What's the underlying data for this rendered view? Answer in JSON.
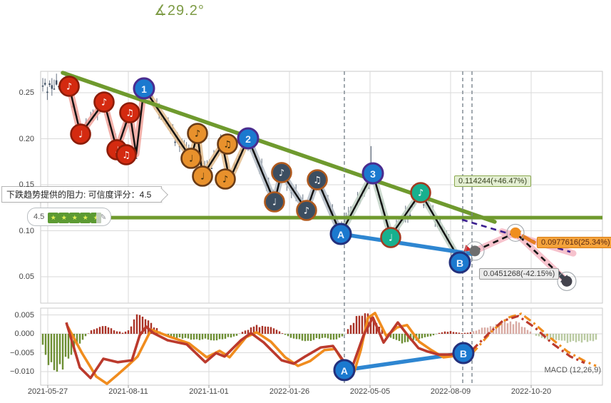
{
  "title": {
    "angle_label": "∡29.2°"
  },
  "tooltip": {
    "text": "下跌趋势提供的阻力: 可信度评分：4.5"
  },
  "rating": {
    "value": "4.5",
    "stars_full": 4,
    "stars_half": 1,
    "edit_icon": "✎"
  },
  "annotations": {
    "target": {
      "text": "0.114244(+46.47%)"
    },
    "mid": {
      "text": "0.0977616(25.34%)"
    },
    "stop": {
      "text": "0.0451268(-42.15%)"
    }
  },
  "macd_label": "MACD (12,26,9)",
  "colors": {
    "trend_green": "#6f9a2e",
    "title_green": "#7d9b45",
    "candle": "#3f4f63",
    "macd_line": "#bb3a2d",
    "signal_line": "#f08c1e",
    "hist_pos": "#a93226",
    "hist_neg": "#6d8f34",
    "hist_pos_fc": "#d0958d",
    "hist_neg_fc": "#a9bd8a",
    "blue_line": "#2e86d1",
    "vline": "#7a848e",
    "grid": "#dadada",
    "pink_glow": "#f6bcc8",
    "purple_dash": "#3b1f8f",
    "marker_red": "#d42a10",
    "marker_red_border": "#8c1c08",
    "marker_orange": "#e8912c",
    "marker_orange_border": "#6b3c16",
    "marker_navy": "#3c4e61",
    "marker_navy_border": "#b05a1e",
    "marker_teal": "#17b08e",
    "marker_teal_border": "#a23b22",
    "marker_blue": "#1b79cf",
    "marker_num_border": "#4a2c8f",
    "marker_ab_border": "#23307c",
    "dot_gray": "#6e6e6e",
    "dot_orange": "#ef8e1f",
    "dot_dark": "#43434d"
  },
  "chart_data": [
    {
      "type": "candlestick",
      "panel": "price",
      "title": "∡29.2°",
      "trend_angle_deg": 29.2,
      "ylim": [
        0.022,
        0.273
      ],
      "yticks": [
        0.25,
        0.2,
        0.15,
        0.1,
        0.05
      ],
      "ytick_labels": [
        "0.25",
        "0.20",
        "0.15",
        "0.10",
        "0.05"
      ],
      "xtick_t": [
        0.0127,
        0.1561,
        0.2995,
        0.4429,
        0.5863,
        0.7297,
        0.8731
      ],
      "xtick_labels": [
        "2021-05-27",
        "2021-08-11",
        "2021-11-01",
        "2022-01-26",
        "2022-05-05",
        "2022-08-09",
        "2022-10-20"
      ],
      "grid": true,
      "resistance_level": 0.114244,
      "resistance_confidence": 4.5,
      "current_price": 0.078,
      "trend_line": {
        "from": [
          0.0393,
          0.2717
        ],
        "to": [
          0.8083,
          0.1097
        ]
      },
      "zigzag": [
        [
          0.0508,
          0.257
        ],
        [
          0.0711,
          0.205
        ],
        [
          0.1129,
          0.2399
        ],
        [
          0.1358,
          0.188
        ],
        [
          0.1586,
          0.2283
        ],
        [
          0.17,
          0.1833
        ],
        [
          0.184,
          0.2547
        ],
        [
          0.2678,
          0.1787
        ],
        [
          0.2792,
          0.2058
        ],
        [
          0.2881,
          0.1593
        ],
        [
          0.3236,
          0.1934
        ],
        [
          0.3363,
          0.1554
        ],
        [
          0.3693,
          0.2004
        ],
        [
          0.4162,
          0.1314
        ],
        [
          0.4289,
          0.1632
        ],
        [
          0.4733,
          0.1221
        ],
        [
          0.4924,
          0.1554
        ],
        [
          0.5343,
          0.0965
        ],
        [
          0.5914,
          0.1624
        ],
        [
          0.6231,
          0.0942
        ],
        [
          0.6764,
          0.1414
        ],
        [
          0.7462,
          0.0678
        ],
        [
          0.7627,
          0.0756
        ]
      ],
      "glow_segments": [
        {
          "from": 0,
          "to": 6,
          "color": "#f0a29a"
        },
        {
          "from": 6,
          "to": 12,
          "color": "#e3bd8e"
        },
        {
          "from": 12,
          "to": 17,
          "color": "#b4bcc6"
        },
        {
          "from": 17,
          "to": 22,
          "color": "#c2d2c6"
        }
      ],
      "note_markers": [
        {
          "t": 0.0508,
          "p": 0.257,
          "kind": "red",
          "glyph": "♪"
        },
        {
          "t": 0.0711,
          "p": 0.205,
          "kind": "red",
          "glyph": "♩"
        },
        {
          "t": 0.1129,
          "p": 0.2399,
          "kind": "red",
          "glyph": "♪"
        },
        {
          "t": 0.1358,
          "p": 0.188,
          "kind": "red",
          "glyph": "♩"
        },
        {
          "t": 0.1523,
          "p": 0.1826,
          "kind": "red",
          "glyph": "♫"
        },
        {
          "t": 0.1586,
          "p": 0.2283,
          "kind": "red",
          "glyph": "♫"
        },
        {
          "t": 0.2792,
          "p": 0.2058,
          "kind": "orange",
          "glyph": "♪"
        },
        {
          "t": 0.2678,
          "p": 0.1787,
          "kind": "orange",
          "glyph": "♩"
        },
        {
          "t": 0.2881,
          "p": 0.1593,
          "kind": "orange",
          "glyph": "♩"
        },
        {
          "t": 0.3325,
          "p": 0.1942,
          "kind": "orange",
          "glyph": "♫"
        },
        {
          "t": 0.3287,
          "p": 0.1562,
          "kind": "orange",
          "glyph": "♪"
        },
        {
          "t": 0.4289,
          "p": 0.1632,
          "kind": "navy",
          "glyph": "♪"
        },
        {
          "t": 0.4162,
          "p": 0.1314,
          "kind": "navy",
          "glyph": "♩"
        },
        {
          "t": 0.4924,
          "p": 0.1554,
          "kind": "navy",
          "glyph": "♫"
        },
        {
          "t": 0.4733,
          "p": 0.1221,
          "kind": "navy",
          "glyph": "♪"
        },
        {
          "t": 0.6764,
          "p": 0.1414,
          "kind": "teal",
          "glyph": "♪"
        },
        {
          "t": 0.6231,
          "p": 0.0926,
          "kind": "teal",
          "glyph": "♩"
        }
      ],
      "wave_markers": [
        {
          "t": 0.184,
          "p": 0.2547,
          "label": "1",
          "border": "num"
        },
        {
          "t": 0.3693,
          "p": 0.2004,
          "label": "2",
          "border": "num"
        },
        {
          "t": 0.5914,
          "p": 0.1624,
          "label": "3",
          "border": "num"
        },
        {
          "t": 0.5343,
          "p": 0.0965,
          "label": "A",
          "border": "ab"
        },
        {
          "t": 0.7462,
          "p": 0.0655,
          "label": "B",
          "border": "ab"
        }
      ],
      "ab_line": {
        "from": [
          0.5343,
          0.0965
        ],
        "to": [
          0.7678,
          0.0748
        ]
      },
      "vlines_t": [
        0.5406,
        0.7513,
        0.7678
      ],
      "spikes": [
        [
          0.185,
          0.265
        ],
        [
          0.588,
          0.192
        ]
      ],
      "projection": {
        "upper_dashed": {
          "from": [
            0.75,
            0.112
          ],
          "to": [
            0.9429,
            0.077
          ]
        },
        "path": [
          [
            0.7729,
            0.078
          ],
          [
            0.8452,
            0.0978
          ],
          [
            0.9365,
            0.0451
          ]
        ],
        "dots": [
          {
            "t": 0.7729,
            "p": 0.078,
            "color_key": "dot_gray",
            "ring": 13
          },
          {
            "t": 0.8452,
            "p": 0.0978,
            "color_key": "dot_orange",
            "ring": 12
          },
          {
            "t": 0.9365,
            "p": 0.0451,
            "color_key": "dot_dark",
            "ring": 13
          }
        ]
      }
    },
    {
      "type": "line",
      "panel": "macd",
      "label": "MACD (12,26,9)",
      "params": [
        12,
        26,
        9
      ],
      "ylim": [
        -0.0135,
        0.0073
      ],
      "yticks": [
        0.005,
        0.0,
        -0.005,
        -0.01
      ],
      "ytick_labels": [
        "0.005",
        "0.000",
        "−0.005",
        "−0.010"
      ],
      "forecast_start_t": 0.768,
      "hist_envelope": [
        [
          0.0038,
          -0.003
        ],
        [
          0.0165,
          -0.0085
        ],
        [
          0.0355,
          -0.0092
        ],
        [
          0.0546,
          -0.005
        ],
        [
          0.0774,
          -0.001
        ],
        [
          0.0901,
          0.0008
        ],
        [
          0.1117,
          0.0022
        ],
        [
          0.1307,
          0.001
        ],
        [
          0.1459,
          0.0003
        ],
        [
          0.1586,
          0.0012
        ],
        [
          0.1713,
          0.0048
        ],
        [
          0.184,
          0.0052
        ],
        [
          0.1967,
          0.0026
        ],
        [
          0.2094,
          0.001
        ],
        [
          0.2259,
          -0.0008
        ],
        [
          0.2602,
          -0.0013
        ],
        [
          0.3084,
          -0.0016
        ],
        [
          0.3465,
          -0.0007
        ],
        [
          0.3617,
          0.0008
        ],
        [
          0.382,
          0.002
        ],
        [
          0.3997,
          0.0022
        ],
        [
          0.4226,
          0.0008
        ],
        [
          0.4416,
          -0.0008
        ],
        [
          0.4733,
          -0.0018
        ],
        [
          0.5013,
          -0.0011
        ],
        [
          0.5241,
          -0.0015
        ],
        [
          0.5393,
          -0.0006
        ],
        [
          0.552,
          0.0022
        ],
        [
          0.5685,
          0.0056
        ],
        [
          0.5824,
          0.006
        ],
        [
          0.6002,
          0.0028
        ],
        [
          0.6193,
          -0.001
        ],
        [
          0.6447,
          -0.0026
        ],
        [
          0.6701,
          -0.0015
        ],
        [
          0.6954,
          -0.0007
        ],
        [
          0.7119,
          0.0004
        ],
        [
          0.7297,
          0.0007
        ],
        [
          0.75,
          0.0002
        ],
        [
          0.7652,
          0.0004
        ],
        [
          0.7805,
          0.0012
        ],
        [
          0.8033,
          0.0022
        ],
        [
          0.8287,
          0.003
        ],
        [
          0.8477,
          0.003
        ],
        [
          0.8668,
          0.0012
        ],
        [
          0.882,
          -0.0006
        ],
        [
          0.9074,
          -0.0016
        ],
        [
          0.9365,
          -0.0022
        ],
        [
          0.9619,
          -0.002
        ],
        [
          0.9835,
          -0.0017
        ]
      ],
      "macd_line": [
        [
          0.0457,
          0.003
        ],
        [
          0.0698,
          -0.0089
        ],
        [
          0.0888,
          -0.0117
        ],
        [
          0.1117,
          -0.0066
        ],
        [
          0.1371,
          -0.0075
        ],
        [
          0.1624,
          -0.007
        ],
        [
          0.1764,
          -0.0004
        ],
        [
          0.1878,
          0.0019
        ],
        [
          0.2005,
          0.0002
        ],
        [
          0.2259,
          -0.0017
        ],
        [
          0.2602,
          -0.0028
        ],
        [
          0.2931,
          -0.0075
        ],
        [
          0.3122,
          -0.0051
        ],
        [
          0.3274,
          -0.006
        ],
        [
          0.3566,
          -0.0017
        ],
        [
          0.3744,
          0.0002
        ],
        [
          0.3972,
          -0.0023
        ],
        [
          0.4289,
          -0.007
        ],
        [
          0.4505,
          -0.0079
        ],
        [
          0.4708,
          -0.006
        ],
        [
          0.4987,
          -0.0036
        ],
        [
          0.5203,
          -0.0032
        ],
        [
          0.5406,
          -0.0075
        ],
        [
          0.5558,
          -0.0083
        ],
        [
          0.5748,
          -0.0004
        ],
        [
          0.5914,
          0.0043
        ],
        [
          0.6104,
          -0.0023
        ],
        [
          0.6358,
          0.003
        ],
        [
          0.6535,
          -0.0004
        ],
        [
          0.6726,
          -0.0038
        ],
        [
          0.6891,
          -0.0047
        ],
        [
          0.7081,
          -0.0055
        ],
        [
          0.7297,
          -0.0055
        ],
        [
          0.7525,
          -0.0047
        ],
        [
          0.768,
          -0.0043
        ]
      ],
      "macd_forecast": [
        [
          0.768,
          -0.0043
        ],
        [
          0.797,
          0.0
        ],
        [
          0.8223,
          0.0034
        ],
        [
          0.8503,
          0.0047
        ],
        [
          0.8794,
          0.0017
        ],
        [
          0.9112,
          -0.0026
        ],
        [
          0.9429,
          -0.006
        ],
        [
          0.9683,
          -0.0077
        ]
      ],
      "signal_line": [
        [
          0.0482,
          0.0019
        ],
        [
          0.0736,
          -0.0051
        ],
        [
          0.099,
          -0.0113
        ],
        [
          0.118,
          -0.0132
        ],
        [
          0.1371,
          -0.0108
        ],
        [
          0.1561,
          -0.0083
        ],
        [
          0.1726,
          -0.006
        ],
        [
          0.1865,
          -0.0019
        ],
        [
          0.1967,
          0.0011
        ],
        [
          0.2094,
          0.0004
        ],
        [
          0.2322,
          -0.0009
        ],
        [
          0.264,
          -0.0025
        ],
        [
          0.2957,
          -0.0062
        ],
        [
          0.3185,
          -0.0045
        ],
        [
          0.3363,
          -0.0062
        ],
        [
          0.3655,
          -0.0009
        ],
        [
          0.3845,
          0.0004
        ],
        [
          0.4099,
          -0.0021
        ],
        [
          0.4353,
          -0.0062
        ],
        [
          0.4581,
          -0.0085
        ],
        [
          0.4797,
          -0.0072
        ],
        [
          0.5051,
          -0.0043
        ],
        [
          0.5241,
          -0.004
        ],
        [
          0.5456,
          -0.0091
        ],
        [
          0.5583,
          -0.01
        ],
        [
          0.5698,
          -0.0043
        ],
        [
          0.5825,
          0.0042
        ],
        [
          0.5952,
          0.0055
        ],
        [
          0.6155,
          -0.0006
        ],
        [
          0.6345,
          0.0017
        ],
        [
          0.6523,
          0.0023
        ],
        [
          0.6739,
          -0.0021
        ],
        [
          0.6954,
          -0.0043
        ],
        [
          0.717,
          -0.0062
        ],
        [
          0.7411,
          -0.0058
        ],
        [
          0.768,
          -0.0052
        ]
      ],
      "signal_forecast": [
        [
          0.768,
          -0.0052
        ],
        [
          0.8046,
          0.0009
        ],
        [
          0.8325,
          0.0043
        ],
        [
          0.8553,
          0.0053
        ],
        [
          0.8782,
          0.0028
        ],
        [
          0.9061,
          -0.0009
        ],
        [
          0.9378,
          -0.0047
        ],
        [
          0.9683,
          -0.0072
        ],
        [
          0.9886,
          -0.0085
        ]
      ],
      "wave_markers": [
        {
          "t": 0.5406,
          "v": -0.0096,
          "label": "A"
        },
        {
          "t": 0.7525,
          "v": -0.0051,
          "label": "B"
        }
      ],
      "ab_line": {
        "from": [
          0.5406,
          -0.0096
        ],
        "to": [
          0.7525,
          -0.0051
        ]
      },
      "vlines_t": [
        0.5406,
        0.7513,
        0.7678
      ]
    }
  ]
}
